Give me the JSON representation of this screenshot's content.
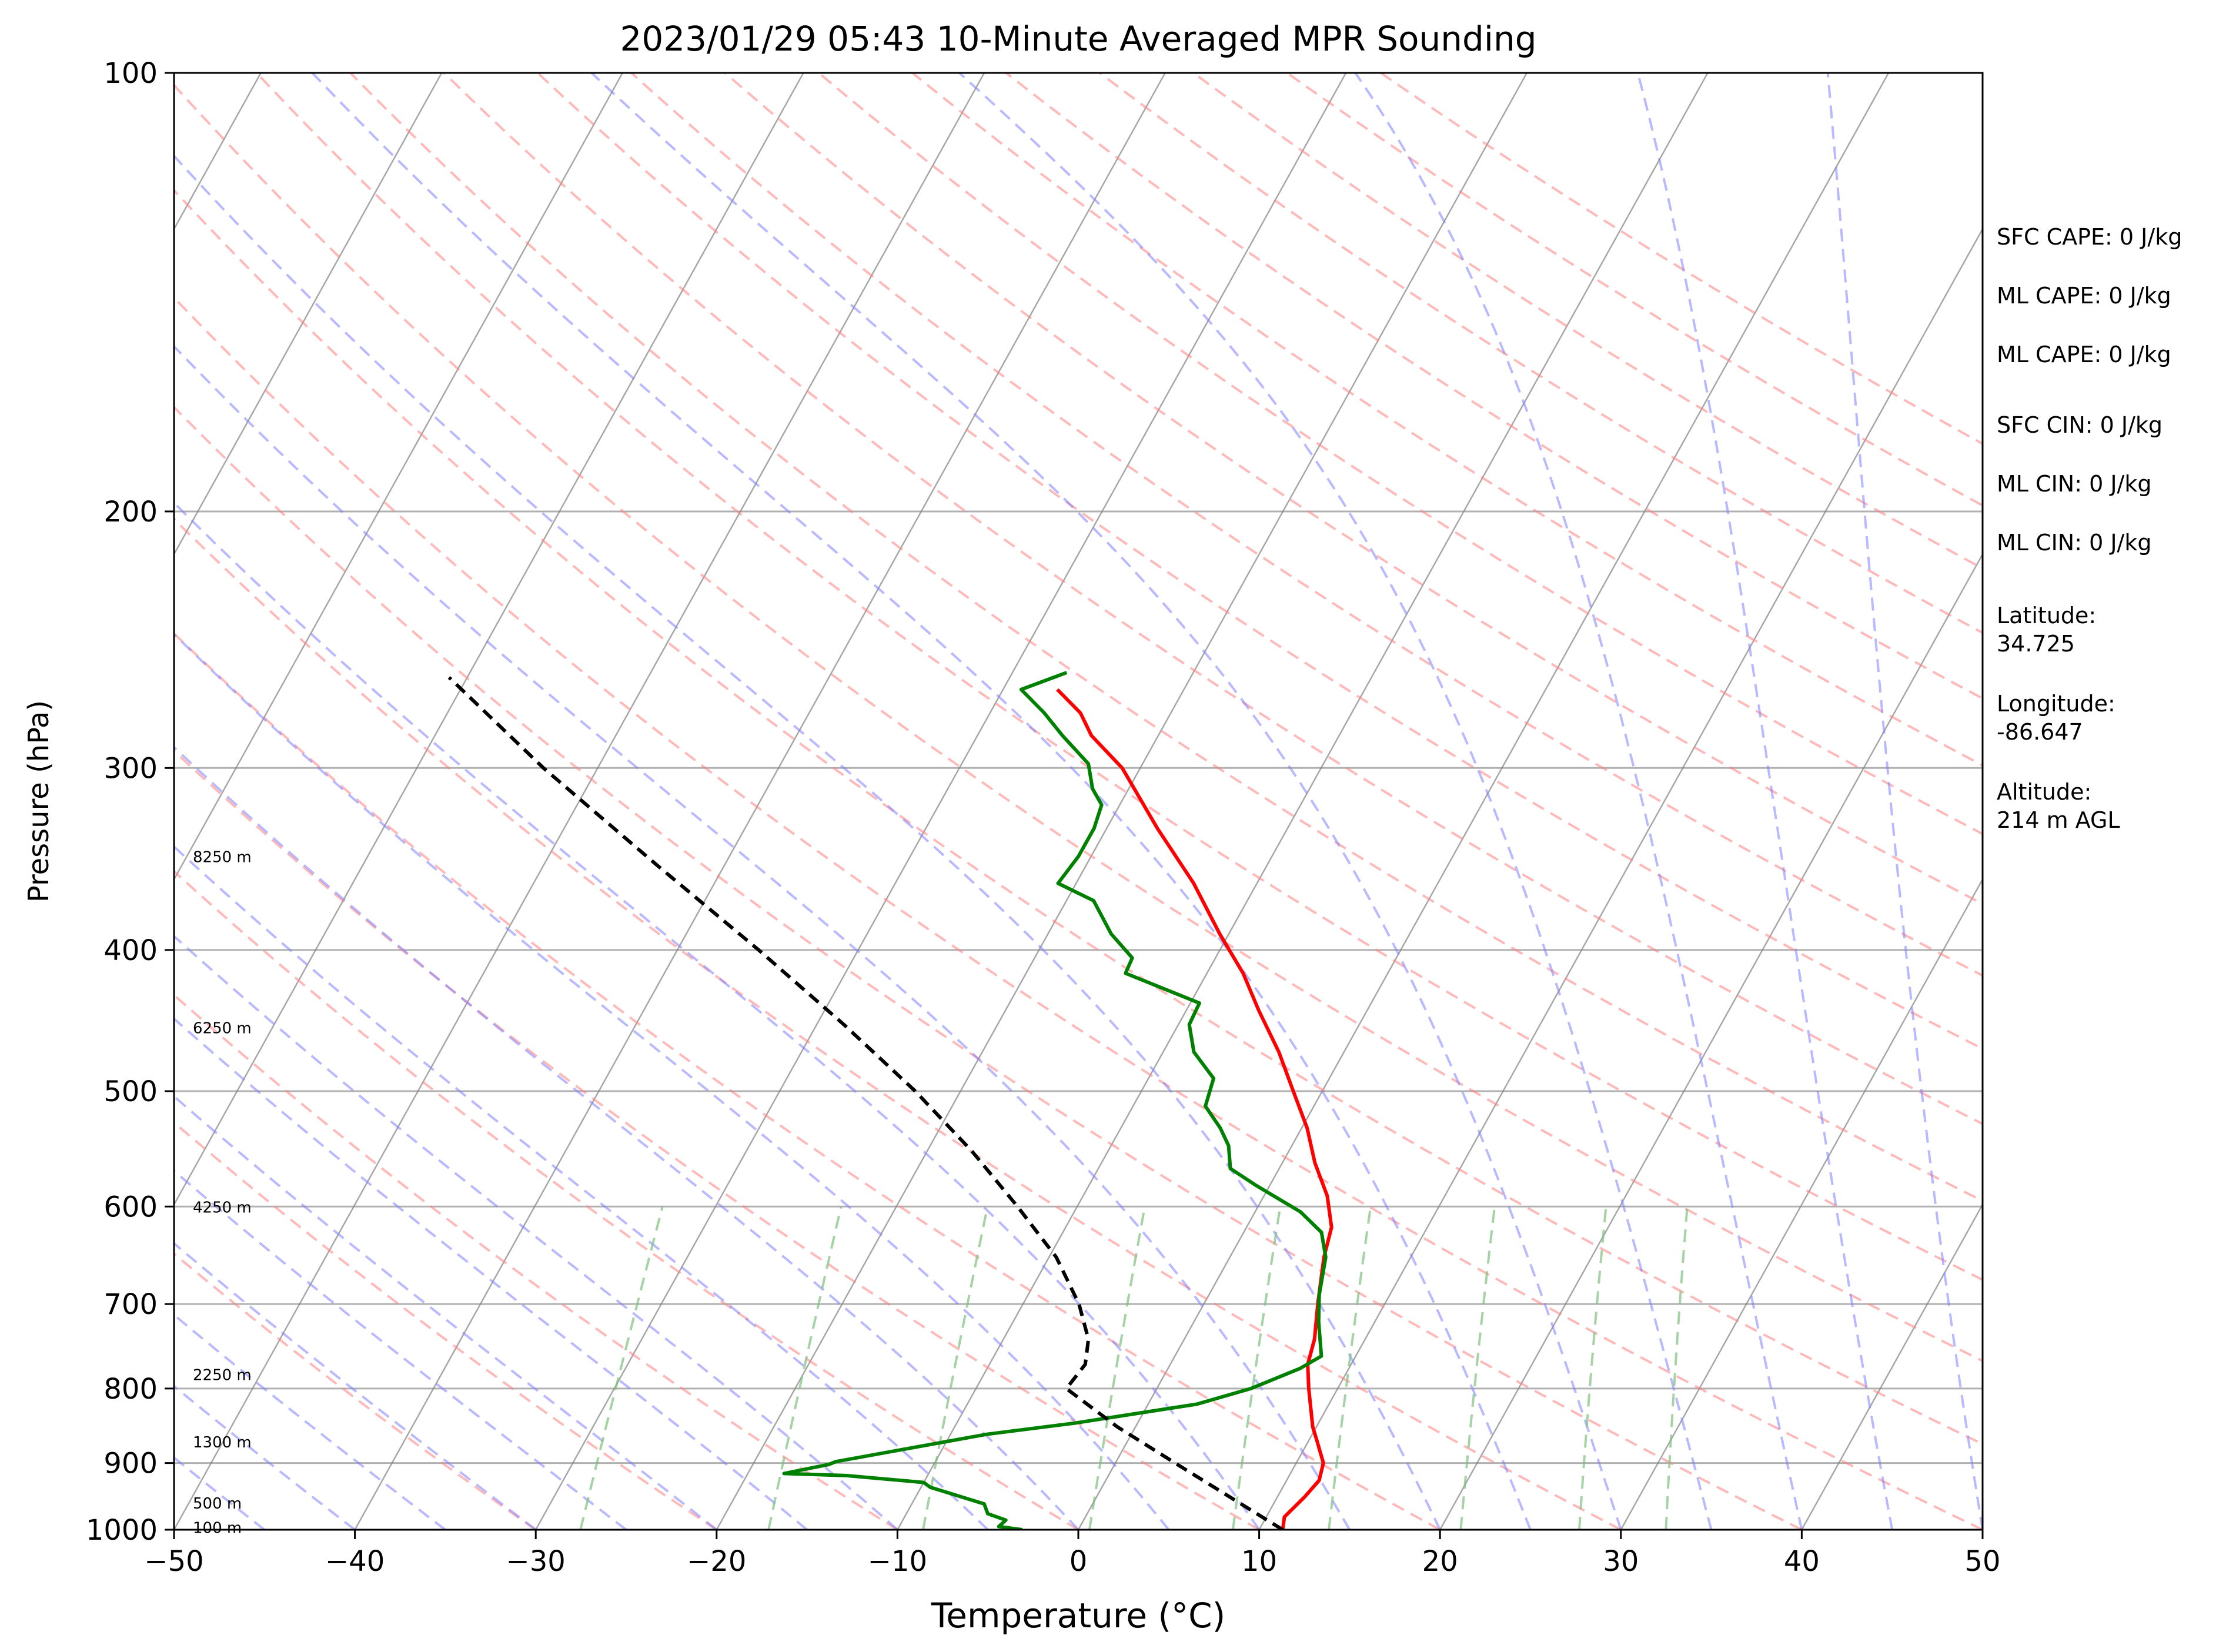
{
  "chart_data": {
    "type": "line",
    "subtype": "skew-T log-p sounding",
    "title": "2023/01/29 05:43 10-Minute Averaged MPR Sounding",
    "xlabel": "Temperature (°C)",
    "ylabel": "Pressure (hPa)",
    "xlim": [
      -50,
      50
    ],
    "ylim": [
      1000,
      100
    ],
    "y_scale": "log",
    "grid": true,
    "x_ticks": [
      "−50",
      "−40",
      "−30",
      "−20",
      "−10",
      "0",
      "10",
      "20",
      "30",
      "40",
      "50"
    ],
    "x_tick_values": [
      -50,
      -40,
      -30,
      -20,
      -10,
      0,
      10,
      20,
      30,
      40,
      50
    ],
    "y_ticks": [
      "100",
      "200",
      "300",
      "400",
      "500",
      "600",
      "700",
      "800",
      "900",
      "1000"
    ],
    "y_tick_values": [
      100,
      200,
      300,
      400,
      500,
      600,
      700,
      800,
      900,
      1000
    ],
    "colors": {
      "temperature": "#ff0000",
      "dewpoint": "#008000",
      "parcel": "#000000",
      "dry_adiabat": "#ff8080",
      "moist_adiabat": "#8080ff",
      "mixing_ratio": "#80c080",
      "isotherm": "#808080"
    },
    "series": [
      {
        "key": "temperature",
        "points": [
          [
            1000,
            11.3
          ],
          [
            980,
            11.0
          ],
          [
            950,
            11.5
          ],
          [
            925,
            11.8
          ],
          [
            900,
            11.5
          ],
          [
            870,
            10.5
          ],
          [
            850,
            9.8
          ],
          [
            800,
            8.4
          ],
          [
            770,
            7.6
          ],
          [
            740,
            7.2
          ],
          [
            700,
            6.3
          ],
          [
            650,
            5.2
          ],
          [
            620,
            4.7
          ],
          [
            590,
            3.5
          ],
          [
            560,
            1.8
          ],
          [
            530,
            0.3
          ],
          [
            500,
            -1.6
          ],
          [
            470,
            -3.6
          ],
          [
            440,
            -6.0
          ],
          [
            415,
            -8.0
          ],
          [
            390,
            -10.5
          ],
          [
            360,
            -13.5
          ],
          [
            330,
            -17.2
          ],
          [
            300,
            -21.0
          ],
          [
            285,
            -23.7
          ],
          [
            275,
            -25.0
          ],
          [
            265,
            -27.0
          ]
        ]
      },
      {
        "key": "dewpoint",
        "points": [
          [
            1000,
            -3.1
          ],
          [
            995,
            -4.5
          ],
          [
            985,
            -4.3
          ],
          [
            975,
            -5.5
          ],
          [
            960,
            -6.0
          ],
          [
            935,
            -9.5
          ],
          [
            928,
            -10.0
          ],
          [
            918,
            -14.5
          ],
          [
            915,
            -18.0
          ],
          [
            902,
            -15.8
          ],
          [
            898,
            -15.5
          ],
          [
            880,
            -12.0
          ],
          [
            860,
            -8.0
          ],
          [
            845,
            -3.5
          ],
          [
            820,
            2.7
          ],
          [
            800,
            5.2
          ],
          [
            775,
            7.3
          ],
          [
            760,
            8.1
          ],
          [
            720,
            6.9
          ],
          [
            690,
            6.1
          ],
          [
            650,
            5.3
          ],
          [
            625,
            4.3
          ],
          [
            605,
            2.5
          ],
          [
            580,
            -0.8
          ],
          [
            565,
            -2.7
          ],
          [
            545,
            -3.5
          ],
          [
            530,
            -4.5
          ],
          [
            512,
            -6.0
          ],
          [
            490,
            -6.4
          ],
          [
            470,
            -8.3
          ],
          [
            450,
            -9.4
          ],
          [
            435,
            -9.5
          ],
          [
            415,
            -14.5
          ],
          [
            405,
            -14.6
          ],
          [
            390,
            -16.5
          ],
          [
            370,
            -18.5
          ],
          [
            360,
            -21.0
          ],
          [
            345,
            -20.7
          ],
          [
            330,
            -20.7
          ],
          [
            318,
            -21.0
          ],
          [
            310,
            -22.0
          ],
          [
            298,
            -23.0
          ],
          [
            285,
            -25.3
          ],
          [
            275,
            -27.0
          ],
          [
            265,
            -29.0
          ],
          [
            258,
            -27.0
          ]
        ]
      },
      {
        "key": "parcel",
        "points": [
          [
            1000,
            11.3
          ],
          [
            900,
            3.3
          ],
          [
            850,
            -1.0
          ],
          [
            800,
            -5.0
          ],
          [
            770,
            -4.7
          ],
          [
            740,
            -5.3
          ],
          [
            700,
            -6.9
          ],
          [
            650,
            -9.6
          ],
          [
            600,
            -13.3
          ],
          [
            550,
            -17.5
          ],
          [
            500,
            -22.5
          ],
          [
            450,
            -28.5
          ],
          [
            400,
            -35.5
          ],
          [
            350,
            -43.7
          ],
          [
            300,
            -53.0
          ],
          [
            260,
            -61.0
          ]
        ]
      }
    ],
    "height_labels": [
      "8250 m",
      "6250 m",
      "4250 m",
      "2250 m",
      "1300 m",
      "500 m",
      "100 m"
    ],
    "height_label_pressures": [
      345,
      452,
      600,
      782,
      870,
      958,
      996
    ]
  },
  "stats": {
    "sfc_cape": "SFC CAPE: 0 J/kg",
    "ml_cape_1": "ML CAPE: 0 J/kg",
    "ml_cape_2": "ML CAPE: 0 J/kg",
    "sfc_cin": "SFC CIN: 0 J/kg",
    "ml_cin_1": "ML CIN: 0 J/kg",
    "ml_cin_2": "ML CIN: 0 J/kg",
    "latitude_label": "Latitude:",
    "latitude_value": "34.725",
    "longitude_label": "Longitude:",
    "longitude_value": "-86.647",
    "altitude_label": "Altitude:",
    "altitude_value": "214 m AGL"
  }
}
